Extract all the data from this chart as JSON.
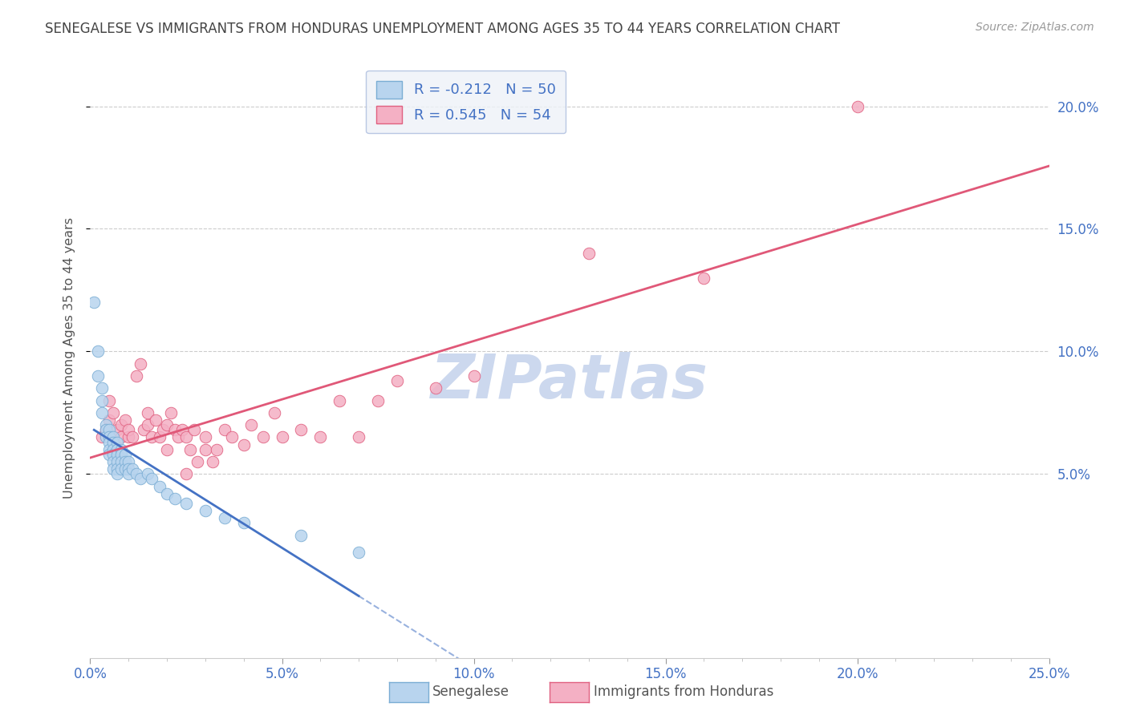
{
  "title": "SENEGALESE VS IMMIGRANTS FROM HONDURAS UNEMPLOYMENT AMONG AGES 35 TO 44 YEARS CORRELATION CHART",
  "source": "Source: ZipAtlas.com",
  "ylabel": "Unemployment Among Ages 35 to 44 years",
  "xlabel_ticks": [
    "0.0%",
    "",
    "",
    "",
    "",
    "",
    "",
    "",
    "",
    "",
    "5.0%",
    "",
    "",
    "",
    "",
    "",
    "",
    "",
    "",
    "",
    "10.0%",
    "",
    "",
    "",
    "",
    "",
    "",
    "",
    "",
    "",
    "15.0%",
    "",
    "",
    "",
    "",
    "",
    "",
    "",
    "",
    "",
    "20.0%",
    "",
    "",
    "",
    "",
    "",
    "",
    "",
    "",
    "",
    "25.0%"
  ],
  "ylabel_ticks_vals": [
    0.05,
    0.1,
    0.15,
    0.2
  ],
  "ylabel_ticks_labels": [
    "5.0%",
    "10.0%",
    "15.0%",
    "20.0%"
  ],
  "xlim": [
    0,
    0.25
  ],
  "ylim": [
    -0.025,
    0.22
  ],
  "series": [
    {
      "name": "Senegalese",
      "R": -0.212,
      "N": 50,
      "color": "#b8d4ee",
      "edge_color": "#7aadd4",
      "trend_color": "#4472c4",
      "trend_style": "solid",
      "x": [
        0.001,
        0.002,
        0.002,
        0.003,
        0.003,
        0.003,
        0.004,
        0.004,
        0.004,
        0.005,
        0.005,
        0.005,
        0.005,
        0.005,
        0.006,
        0.006,
        0.006,
        0.006,
        0.006,
        0.006,
        0.007,
        0.007,
        0.007,
        0.007,
        0.007,
        0.007,
        0.008,
        0.008,
        0.008,
        0.008,
        0.009,
        0.009,
        0.009,
        0.01,
        0.01,
        0.01,
        0.011,
        0.012,
        0.013,
        0.015,
        0.016,
        0.018,
        0.02,
        0.022,
        0.025,
        0.03,
        0.035,
        0.04,
        0.055,
        0.07
      ],
      "y": [
        0.12,
        0.1,
        0.09,
        0.085,
        0.08,
        0.075,
        0.07,
        0.068,
        0.065,
        0.068,
        0.065,
        0.063,
        0.06,
        0.058,
        0.065,
        0.063,
        0.06,
        0.058,
        0.055,
        0.052,
        0.063,
        0.06,
        0.058,
        0.055,
        0.052,
        0.05,
        0.06,
        0.058,
        0.055,
        0.052,
        0.058,
        0.055,
        0.052,
        0.055,
        0.052,
        0.05,
        0.052,
        0.05,
        0.048,
        0.05,
        0.048,
        0.045,
        0.042,
        0.04,
        0.038,
        0.035,
        0.032,
        0.03,
        0.025,
        0.018
      ]
    },
    {
      "name": "Immigrants from Honduras",
      "R": 0.545,
      "N": 54,
      "color": "#f4b0c4",
      "edge_color": "#e06080",
      "trend_color": "#e05878",
      "trend_style": "solid",
      "x": [
        0.003,
        0.004,
        0.005,
        0.005,
        0.006,
        0.007,
        0.008,
        0.008,
        0.009,
        0.01,
        0.01,
        0.011,
        0.012,
        0.013,
        0.014,
        0.015,
        0.015,
        0.016,
        0.017,
        0.018,
        0.019,
        0.02,
        0.02,
        0.021,
        0.022,
        0.023,
        0.024,
        0.025,
        0.025,
        0.026,
        0.027,
        0.028,
        0.03,
        0.03,
        0.032,
        0.033,
        0.035,
        0.037,
        0.04,
        0.042,
        0.045,
        0.048,
        0.05,
        0.055,
        0.06,
        0.065,
        0.07,
        0.075,
        0.08,
        0.09,
        0.1,
        0.13,
        0.16,
        0.2
      ],
      "y": [
        0.065,
        0.068,
        0.072,
        0.08,
        0.075,
        0.068,
        0.07,
        0.065,
        0.072,
        0.065,
        0.068,
        0.065,
        0.09,
        0.095,
        0.068,
        0.07,
        0.075,
        0.065,
        0.072,
        0.065,
        0.068,
        0.07,
        0.06,
        0.075,
        0.068,
        0.065,
        0.068,
        0.05,
        0.065,
        0.06,
        0.068,
        0.055,
        0.065,
        0.06,
        0.055,
        0.06,
        0.068,
        0.065,
        0.062,
        0.07,
        0.065,
        0.075,
        0.065,
        0.068,
        0.065,
        0.08,
        0.065,
        0.08,
        0.088,
        0.085,
        0.09,
        0.14,
        0.13,
        0.2
      ]
    }
  ],
  "watermark": "ZIPatlas",
  "watermark_color": "#ccd8ee",
  "background_color": "#ffffff",
  "grid_color": "#cccccc",
  "title_color": "#444444",
  "axis_label_color": "#555555",
  "tick_label_color": "#4472c4",
  "legend_box_color": "#eef2f8",
  "legend_edge_color": "#aabbdd"
}
